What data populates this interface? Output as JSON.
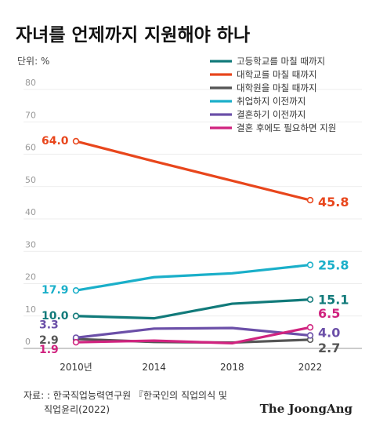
{
  "title": "자녀를 언제까지 지원해야 하나",
  "unit_label": "단위: %",
  "source_line1": "자료: : 한국직업능력연구원 『한국인의 직업의식 및",
  "source_line2": "직업윤리(2022)",
  "brand": "The JoongAng",
  "chart_data": {
    "type": "line",
    "x": [
      "2010년",
      "2014",
      "2018",
      "2022"
    ],
    "ylim": [
      0,
      80
    ],
    "yticks": [
      "0",
      "10",
      "20",
      "30",
      "40",
      "50",
      "60",
      "70",
      "80"
    ],
    "grid": true,
    "legend_position": "top-right",
    "series": [
      {
        "name": "고등학교를 마칠 때까지",
        "color": "#117a7a",
        "values": [
          10.0,
          9.3,
          13.8,
          15.1
        ],
        "start_label": "10.0",
        "end_label": "15.1"
      },
      {
        "name": "대학교를 마칠 때까지",
        "color": "#e8461c",
        "values": [
          64.0,
          57.8,
          51.8,
          45.8
        ],
        "start_label": "64.0",
        "end_label": "45.8"
      },
      {
        "name": "대학원을 마칠 때까지",
        "color": "#555555",
        "values": [
          2.9,
          2.0,
          1.8,
          2.7
        ],
        "start_label": "2.9",
        "end_label": "2.7"
      },
      {
        "name": "취업하지 이전까지",
        "color": "#1aafc9",
        "values": [
          17.9,
          22.0,
          23.2,
          25.8
        ],
        "start_label": "17.9",
        "end_label": "25.8"
      },
      {
        "name": "결혼하기 이전까지",
        "color": "#6b4fa8",
        "values": [
          3.3,
          6.1,
          6.3,
          4.0
        ],
        "start_label": "3.3",
        "end_label": "4.0"
      },
      {
        "name": "결혼 후에도 필요하면 지원",
        "color": "#d0237f",
        "values": [
          1.9,
          2.4,
          1.6,
          6.5
        ],
        "start_label": "1.9",
        "end_label": "6.5"
      }
    ]
  }
}
